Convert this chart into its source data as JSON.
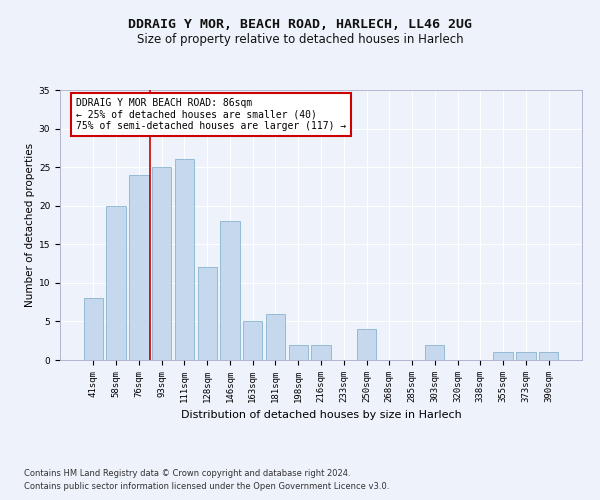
{
  "title": "DDRAIG Y MOR, BEACH ROAD, HARLECH, LL46 2UG",
  "subtitle": "Size of property relative to detached houses in Harlech",
  "xlabel": "Distribution of detached houses by size in Harlech",
  "ylabel": "Number of detached properties",
  "categories": [
    "41sqm",
    "58sqm",
    "76sqm",
    "93sqm",
    "111sqm",
    "128sqm",
    "146sqm",
    "163sqm",
    "181sqm",
    "198sqm",
    "216sqm",
    "233sqm",
    "250sqm",
    "268sqm",
    "285sqm",
    "303sqm",
    "320sqm",
    "338sqm",
    "355sqm",
    "373sqm",
    "390sqm"
  ],
  "values": [
    8,
    20,
    24,
    25,
    26,
    12,
    18,
    5,
    6,
    2,
    2,
    0,
    4,
    0,
    0,
    2,
    0,
    0,
    1,
    1,
    1
  ],
  "bar_color": "#c5d8ed",
  "bar_edge_color": "#7aaac8",
  "bar_width": 0.85,
  "ylim": [
    0,
    35
  ],
  "yticks": [
    0,
    5,
    10,
    15,
    20,
    25,
    30,
    35
  ],
  "vline_color": "#cc0000",
  "vline_x": 2.5,
  "property_label": "DDRAIG Y MOR BEACH ROAD: 86sqm",
  "annotation_line1": "← 25% of detached houses are smaller (40)",
  "annotation_line2": "75% of semi-detached houses are larger (117) →",
  "footer_line1": "Contains HM Land Registry data © Crown copyright and database right 2024.",
  "footer_line2": "Contains public sector information licensed under the Open Government Licence v3.0.",
  "bg_color": "#eef2fa",
  "plot_bg_color": "#eef2fa",
  "grid_color": "#ffffff",
  "title_fontsize": 9.5,
  "subtitle_fontsize": 8.5,
  "ylabel_fontsize": 7.5,
  "xlabel_fontsize": 8,
  "tick_fontsize": 6.5,
  "footer_fontsize": 6,
  "annotation_fontsize": 7
}
